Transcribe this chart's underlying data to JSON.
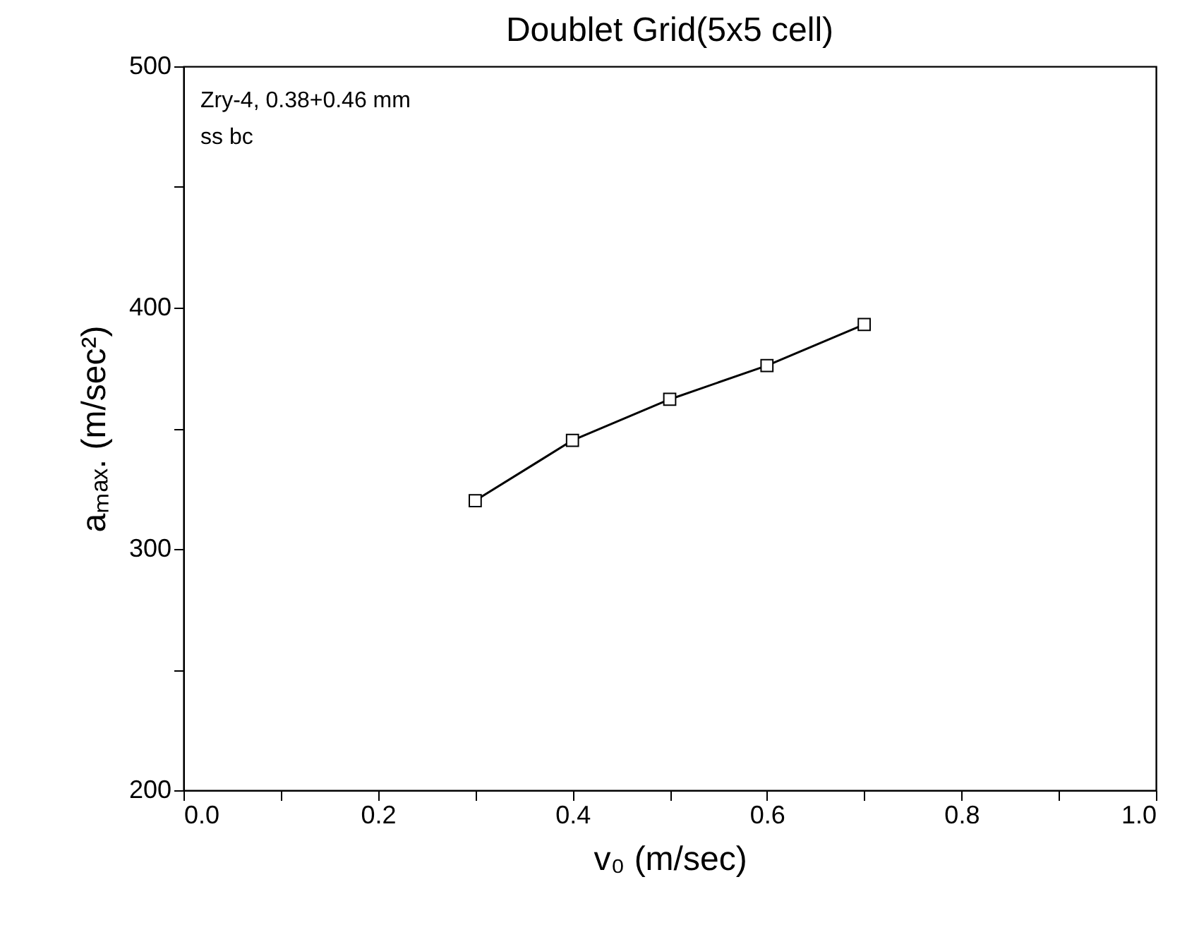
{
  "chart_data": {
    "type": "line",
    "title": "Doublet Grid(5x5 cell)",
    "xlabel": "v₀ (m/sec)",
    "ylabel": "aₘₐₓ. (m/sec²)",
    "x": [
      0.3,
      0.4,
      0.5,
      0.6,
      0.7
    ],
    "series": [
      {
        "color": "#000000",
        "values": [
          320,
          345,
          362,
          376,
          393
        ]
      }
    ],
    "xlim": [
      0.0,
      1.0
    ],
    "xticks": [
      {
        "value": 0,
        "label": "0.0"
      },
      {
        "value": 0.1,
        "label": null
      },
      {
        "value": 0.2,
        "label": "0.2"
      },
      {
        "value": 0.3,
        "label": null
      },
      {
        "value": 0.4,
        "label": "0.4"
      },
      {
        "value": 0.5,
        "label": null
      },
      {
        "value": 0.6,
        "label": "0.6"
      },
      {
        "value": 0.7,
        "label": null
      },
      {
        "value": 0.8,
        "label": "0.8"
      },
      {
        "value": 0.9,
        "label": null
      },
      {
        "value": 1.0,
        "label": "1.0"
      }
    ],
    "ylim": [
      200,
      500
    ],
    "yticks": [
      200,
      {
        "value": 250,
        "label": null
      },
      300,
      {
        "value": 350,
        "label": null
      },
      400,
      {
        "value": 450,
        "label": null
      },
      500
    ],
    "annotations": [
      "Zry-4, 0.38+0.46 mm",
      "ss bc"
    ],
    "marker": "square",
    "line_style": "solid",
    "grid": false
  }
}
